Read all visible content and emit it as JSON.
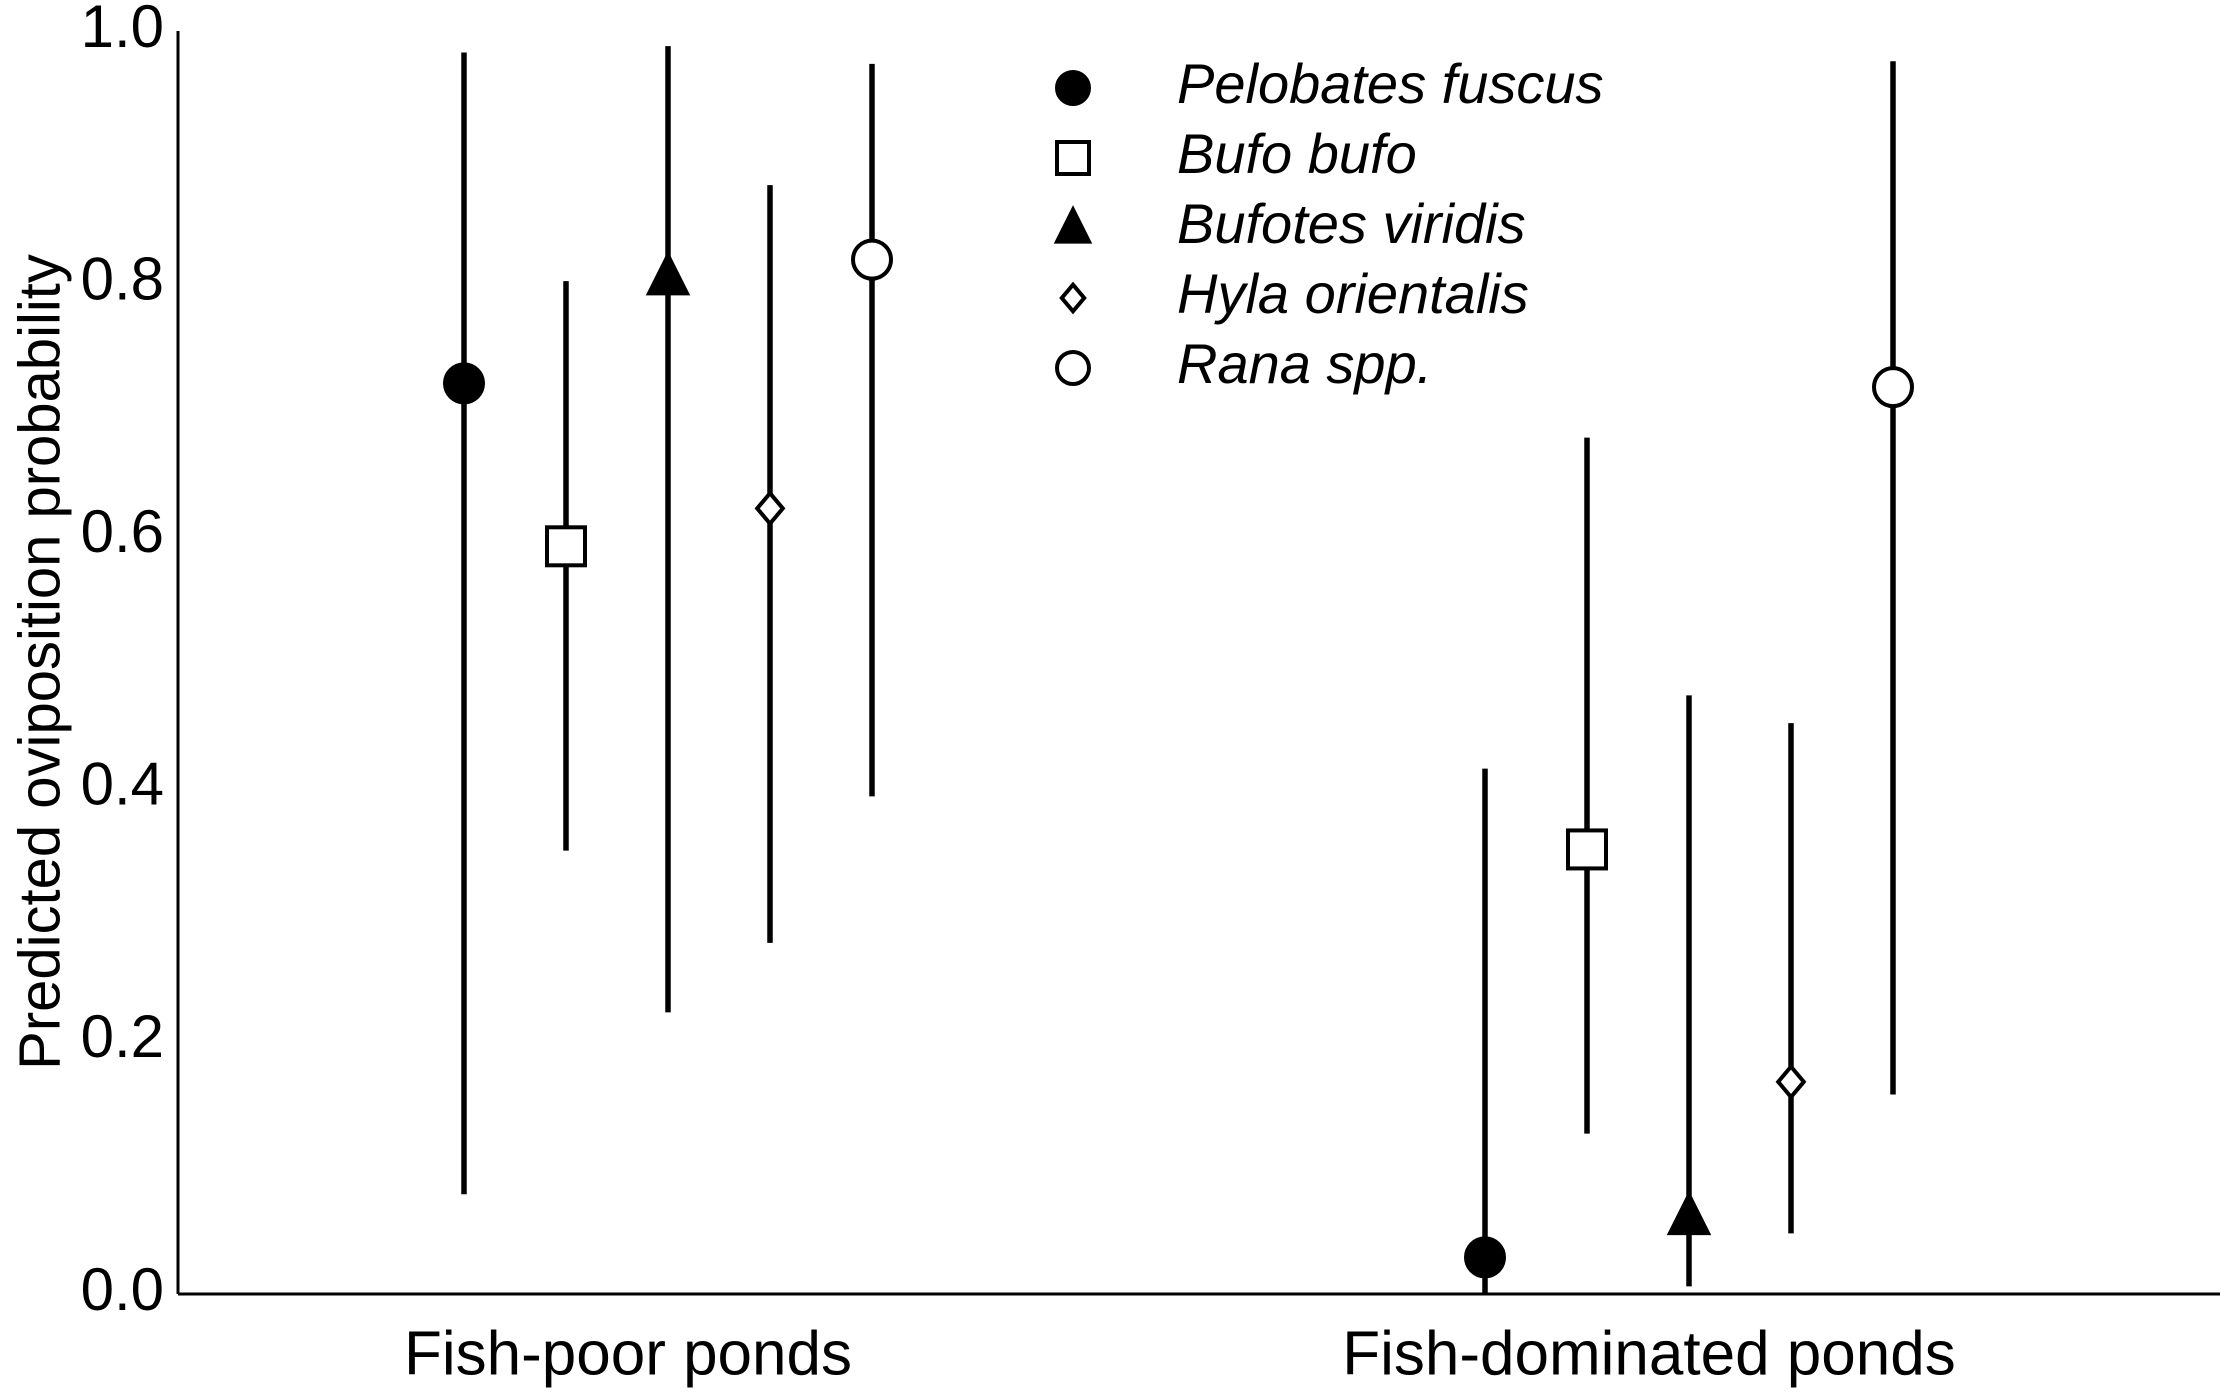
{
  "chart_data": {
    "type": "errorbar",
    "ylabel": "Predicted oviposition probability",
    "categories": [
      "Fish-poor ponds",
      "Fish-dominated ponds"
    ],
    "ylim": [
      0,
      1
    ],
    "yticks": [
      {
        "value": 0,
        "label": "0.0"
      },
      0.2,
      0.4,
      0.6,
      0.8,
      {
        "value": 1,
        "label": "1.0"
      }
    ],
    "grid": false,
    "legend": "top-center",
    "series": [
      {
        "name": "Pelobates fuscus",
        "marker": "circle",
        "color": "#000000",
        "values": [
          0.721,
          0.029
        ],
        "lower": [
          0.079,
          0
        ],
        "upper": [
          0.983,
          0.416
        ]
      },
      {
        "name": "Bufo bufo",
        "marker": "square",
        "color": "#ffffff",
        "values": [
          0.592,
          0.352
        ],
        "lower": [
          0.351,
          0.127
        ],
        "upper": [
          0.802,
          0.678
        ]
      },
      {
        "name": "Bufotes viridis",
        "marker": "triangle",
        "color": "#000000",
        "values": [
          0.805,
          0.061
        ],
        "lower": [
          0.223,
          0.006
        ],
        "upper": [
          0.988,
          0.474
        ]
      },
      {
        "name": "Hyla orientalis",
        "marker": "diamond",
        "color": "#ffffff",
        "values": [
          0.622,
          0.168
        ],
        "lower": [
          0.278,
          0.048
        ],
        "upper": [
          0.878,
          0.452
        ]
      },
      {
        "name": "Rana spp.",
        "marker": "circle",
        "color": "#ffffff",
        "values": [
          0.819,
          0.718
        ],
        "lower": [
          0.394,
          0.158
        ],
        "upper": [
          0.974,
          0.976
        ]
      }
    ]
  }
}
